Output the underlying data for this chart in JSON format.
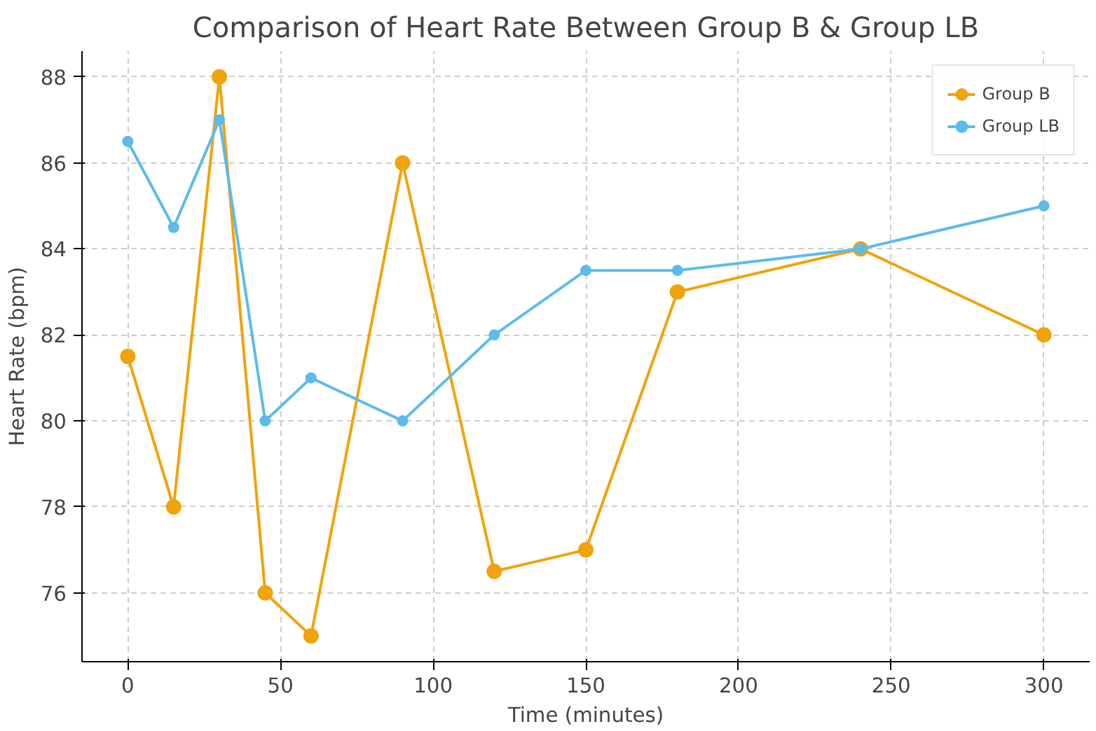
{
  "chart_data": {
    "type": "line",
    "title": "Comparison of Heart Rate Between Group B & Group LB",
    "xlabel": "Time (minutes)",
    "ylabel": "Heart Rate (bpm)",
    "x": [
      0,
      15,
      30,
      45,
      60,
      90,
      120,
      150,
      180,
      240,
      300
    ],
    "series": [
      {
        "name": "Group B",
        "color": "#f0a30a",
        "values": [
          81.5,
          78,
          88,
          76,
          75,
          86,
          76.5,
          77,
          83,
          84,
          82
        ]
      },
      {
        "name": "Group LB",
        "color": "#5bbcea",
        "values": [
          86.5,
          84.5,
          87,
          80,
          81,
          80,
          82,
          83.5,
          83.5,
          84,
          85
        ]
      }
    ],
    "xlim": [
      -15,
      315
    ],
    "xticks": [
      0,
      50,
      100,
      150,
      200,
      250,
      300
    ],
    "ylim": [
      74.4,
      88.6
    ],
    "yticks": [
      76,
      78,
      80,
      82,
      84,
      86,
      88
    ],
    "grid": true,
    "legend": "top right",
    "marker": "circle",
    "line_style": "solid"
  }
}
